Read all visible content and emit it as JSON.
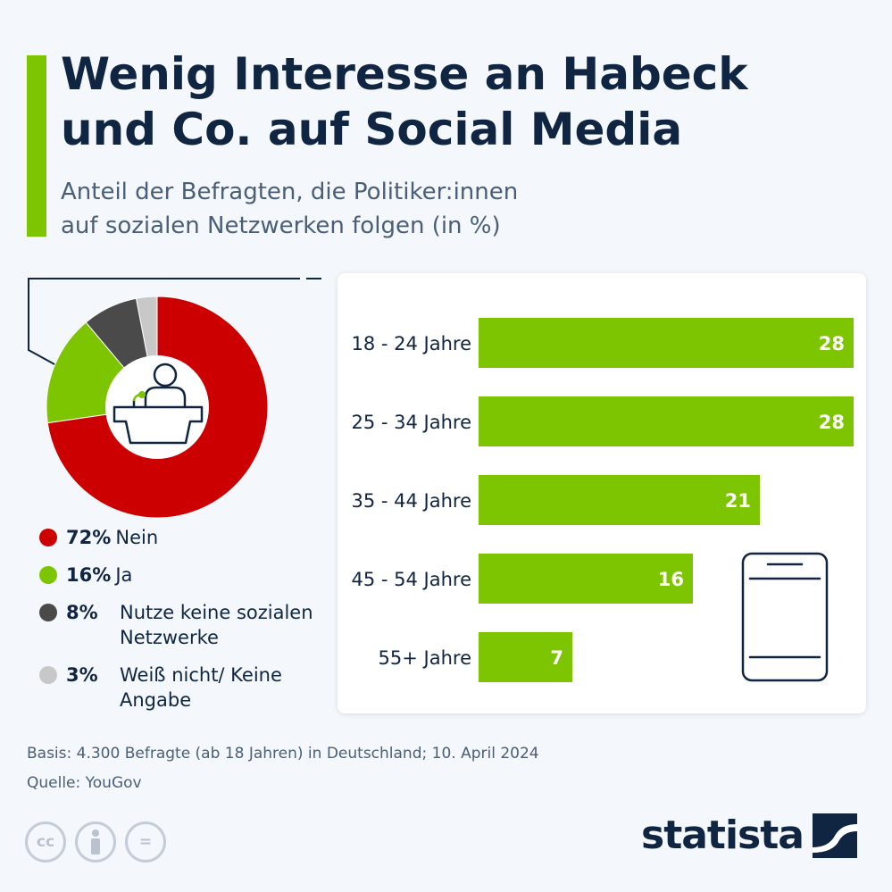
{
  "header": {
    "title_line1": "Wenig Interesse an Habeck",
    "title_line2": "und Co. auf Social Media",
    "subtitle_line1": "Anteil der Befragten, die Politiker:innen",
    "subtitle_line2": "auf sozialen Netzwerken folgen (in %)"
  },
  "colors": {
    "accent": "#7dc500",
    "red": "#cc0000",
    "dark": "#4a4a4a",
    "light_grey": "#c8c8c8",
    "navy": "#0f2541"
  },
  "legend": [
    {
      "pct": "72%",
      "label": "Nein",
      "color": "#cc0000"
    },
    {
      "pct": "16%",
      "label": "Ja",
      "color": "#7dc500"
    },
    {
      "pct": "8%",
      "label": "Nutze keine sozialen Netzwerke",
      "color": "#4a4a4a"
    },
    {
      "pct": "3%",
      "label": "Weiß nicht/ Keine Angabe",
      "color": "#c8c8c8"
    }
  ],
  "chart_data": [
    {
      "type": "pie",
      "categories": [
        "Nein",
        "Ja",
        "Nutze keine sozialen Netzwerke",
        "Weiß nicht/ Keine Angabe"
      ],
      "values": [
        72,
        16,
        8,
        3
      ],
      "colors": [
        "#cc0000",
        "#7dc500",
        "#4a4a4a",
        "#c8c8c8"
      ],
      "title": "",
      "center_icon": "speaker-at-podium-icon"
    },
    {
      "type": "bar",
      "orientation": "horizontal",
      "categories": [
        "18 - 24 Jahre",
        "25 - 34 Jahre",
        "35 - 44 Jahre",
        "45 - 54 Jahre",
        "55+ Jahre"
      ],
      "values": [
        28,
        28,
        21,
        16,
        7
      ],
      "value_labels": [
        "28",
        "28",
        "21",
        "16",
        "7"
      ],
      "xlim": [
        0,
        28
      ],
      "color": "#7dc500",
      "title": "",
      "xlabel": "",
      "ylabel": "",
      "grid": false,
      "decorative_icon": "smartphone-icon"
    }
  ],
  "footer": {
    "basis": "Basis: 4.300 Befragte (ab 18 Jahren) in Deutschland; 10. April 2024",
    "source": "Quelle: YouGov",
    "license_icons": [
      "cc-icon",
      "by-icon",
      "nd-icon"
    ],
    "cc_label": "cc",
    "nd_label": "="
  },
  "brand": {
    "name": "statista"
  }
}
